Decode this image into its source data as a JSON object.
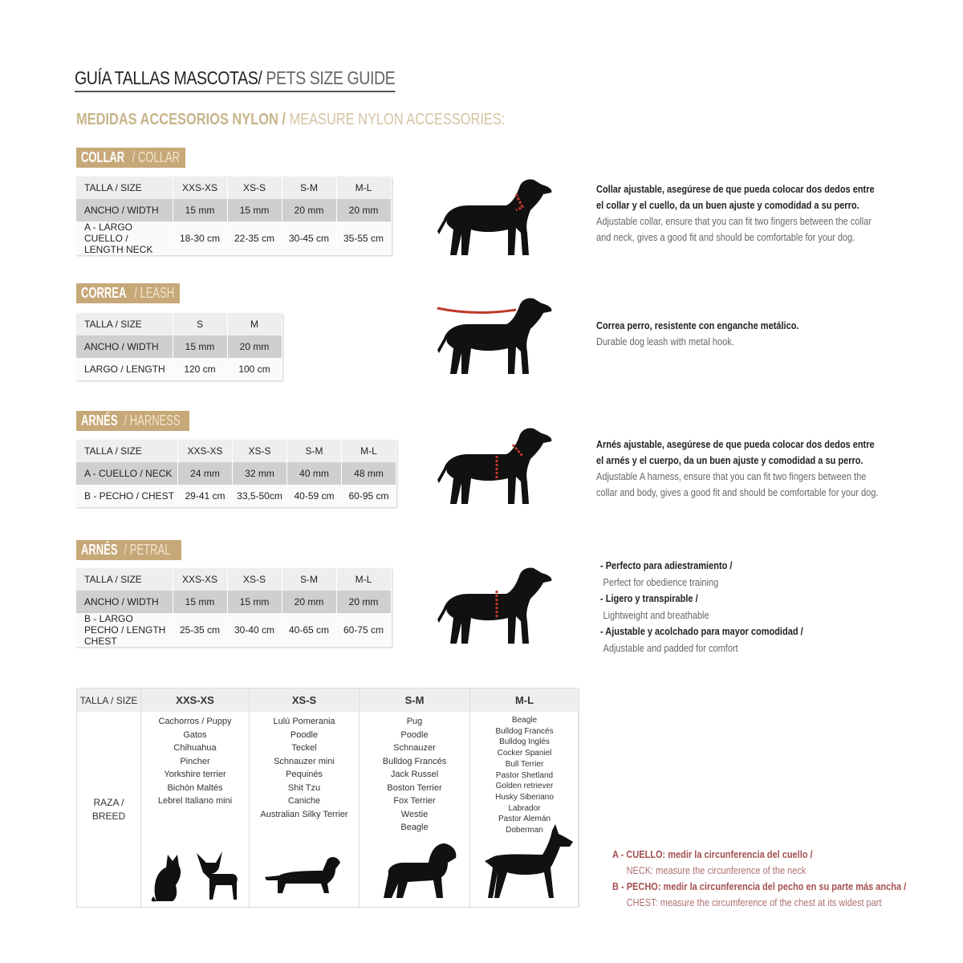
{
  "title": {
    "es": "GUÍA TALLAS MASCOTAS/",
    "en": " PETS SIZE GUIDE"
  },
  "subtitle": {
    "es": "MEDIDAS ACCESORIOS NYLON /",
    "en": " MEASURE NYLON ACCESSORIES:"
  },
  "colors": {
    "gold": "#c7a878",
    "accent_red": "#c0392b"
  },
  "collar": {
    "tag_es": "COLLAR",
    "tag_en": " / COLLAR",
    "rows": [
      [
        "TALLA / SIZE",
        "XXS-XS",
        "XS-S",
        "S-M",
        "M-L"
      ],
      [
        "ANCHO / WIDTH",
        "15 mm",
        "15 mm",
        "20 mm",
        "20 mm"
      ],
      [
        "A - LARGO CUELLO / LENGTH NECK",
        "18-30 cm",
        "22-35 cm",
        "30-45 cm",
        "35-55 cm"
      ]
    ],
    "desc_es": [
      "Collar ajustable, asegúrese de que pueda colocar dos dedos entre",
      "el collar y el cuello, da un buen ajuste y comodidad a su perro."
    ],
    "desc_en": [
      "Adjustable collar, ensure that you can fit two fingers between the collar",
      "and neck, gives a good fit and should be comfortable for your dog."
    ]
  },
  "leash": {
    "tag_es": "CORREA",
    "tag_en": " / LEASH",
    "rows": [
      [
        "TALLA / SIZE",
        "S",
        "M"
      ],
      [
        "ANCHO / WIDTH",
        "15 mm",
        "20 mm"
      ],
      [
        "LARGO / LENGTH",
        "120 cm",
        "100 cm"
      ]
    ],
    "desc_es": [
      "Correa perro, resistente con enganche metálico."
    ],
    "desc_en": [
      "Durable dog leash with metal hook."
    ]
  },
  "harness": {
    "tag_es": "ARNÉS",
    "tag_en": " / HARNESS",
    "rows": [
      [
        "TALLA / SIZE",
        "XXS-XS",
        "XS-S",
        "S-M",
        "M-L"
      ],
      [
        "A - CUELLO / NECK",
        "24 mm",
        "32 mm",
        "40 mm",
        "48 mm"
      ],
      [
        "B - PECHO / CHEST",
        "29-41 cm",
        "33,5-50cm",
        "40-59 cm",
        "60-95 cm"
      ]
    ],
    "desc_es": [
      "Arnés ajustable, asegúrese de que pueda colocar dos dedos entre",
      "el arnés y el cuerpo, da un buen ajuste y comodidad a su perro."
    ],
    "desc_en": [
      "Adjustable A harness, ensure that you can fit two fingers between the",
      "collar and body, gives a good fit and should be comfortable for your dog."
    ]
  },
  "petral": {
    "tag_es": "ARNÉS",
    "tag_en": " / PETRAL",
    "rows": [
      [
        "TALLA / SIZE",
        "XXS-XS",
        "XS-S",
        "S-M",
        "M-L"
      ],
      [
        "ANCHO / WIDTH",
        "15 mm",
        "15 mm",
        "20 mm",
        "20 mm"
      ],
      [
        "B - LARGO PECHO / LENGTH CHEST",
        "25-35 cm",
        "30-40 cm",
        "40-65 cm",
        "60-75 cm"
      ]
    ],
    "bullets": [
      {
        "es": "- Perfecto para adiestramiento /",
        "en": "Perfect for obedience training"
      },
      {
        "es": "- Ligero y transpirable /",
        "en": "Lightweight and breathable"
      },
      {
        "es": "- Ajustable y acolchado para mayor comodidad /",
        "en": "Adjustable and padded for comfort"
      }
    ]
  },
  "breeds": {
    "header": [
      "TALLA / SIZE",
      "XXS-XS",
      "XS-S",
      "S-M",
      "M-L"
    ],
    "row_label": "RAZA / BREED",
    "columns": [
      [
        "Cachorros / Puppy",
        "Gatos",
        "Chihuahua",
        "Pincher",
        "Yorkshire terrier",
        "Bichón Maltés",
        "Lebrel Italiano mini"
      ],
      [
        "Lulú Pomerania",
        "Poodle",
        "Teckel",
        "Schnauzer mini",
        "Pequinés",
        "Shit Tzu",
        "Caniche",
        "Australian Silky Terrier"
      ],
      [
        "Pug",
        "Poodle",
        "Schnauzer",
        "Bulldog Francés",
        "Jack Russel",
        "Boston Terrier",
        "Fox Terrier",
        "Westie",
        "Beagle"
      ],
      [
        "Beagle",
        "Bulldog Francés",
        "Bulldog Inglés",
        "Cocker Spaniel",
        "Bull Terrier",
        "Pastor Shetland",
        "Golden retriever",
        "Husky Siberiano",
        "Labrador",
        "Pastor Alemán",
        "Doberman"
      ]
    ]
  },
  "notes": [
    {
      "es": "A - CUELLO: medir la circunferencia del cuello /",
      "en": "NECK: measure the circunference of the neck"
    },
    {
      "es": "B - PECHO: medir la circunferencia del pecho en su parte más ancha /",
      "en": "CHEST: measure the circumference of the chest at its widest part"
    }
  ]
}
